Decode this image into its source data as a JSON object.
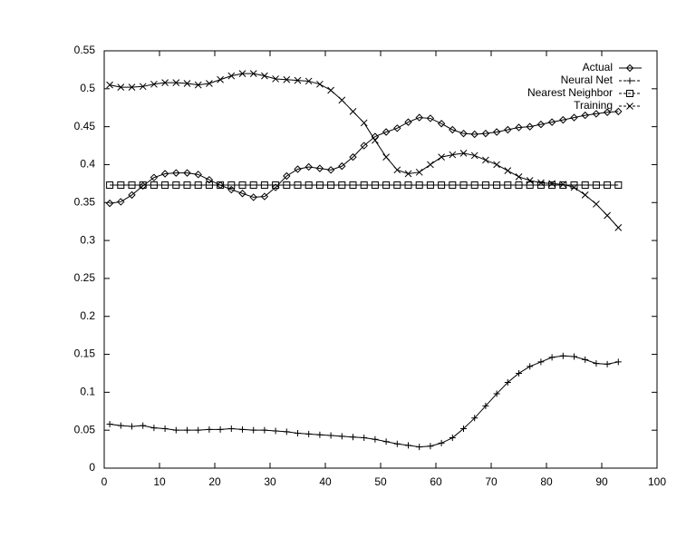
{
  "chart_data": {
    "type": "line",
    "x": [
      1,
      3,
      5,
      7,
      9,
      11,
      13,
      15,
      17,
      19,
      21,
      23,
      25,
      27,
      29,
      31,
      33,
      35,
      37,
      39,
      41,
      43,
      45,
      47,
      49,
      51,
      53,
      55,
      57,
      59,
      61,
      63,
      65,
      67,
      69,
      71,
      73,
      75,
      77,
      79,
      81,
      83,
      85,
      87,
      89,
      91,
      93
    ],
    "series": [
      {
        "name": "Actual",
        "color": "#000000",
        "marker": "diamond",
        "values": [
          0.349,
          0.351,
          0.36,
          0.372,
          0.383,
          0.388,
          0.389,
          0.389,
          0.387,
          0.38,
          0.373,
          0.367,
          0.362,
          0.357,
          0.358,
          0.37,
          0.385,
          0.394,
          0.397,
          0.395,
          0.393,
          0.398,
          0.41,
          0.425,
          0.437,
          0.443,
          0.448,
          0.456,
          0.462,
          0.461,
          0.454,
          0.446,
          0.441,
          0.44,
          0.441,
          0.443,
          0.446,
          0.449,
          0.45,
          0.453,
          0.456,
          0.459,
          0.462,
          0.465,
          0.467,
          0.469,
          0.47
        ]
      },
      {
        "name": "Neural Net",
        "color": "#000000",
        "marker": "plus",
        "values": [
          0.058,
          0.056,
          0.055,
          0.056,
          0.053,
          0.052,
          0.05,
          0.05,
          0.05,
          0.051,
          0.051,
          0.052,
          0.051,
          0.05,
          0.05,
          0.049,
          0.048,
          0.046,
          0.045,
          0.044,
          0.043,
          0.042,
          0.041,
          0.04,
          0.038,
          0.035,
          0.032,
          0.03,
          0.028,
          0.029,
          0.033,
          0.04,
          0.052,
          0.066,
          0.082,
          0.098,
          0.113,
          0.125,
          0.134,
          0.14,
          0.146,
          0.148,
          0.147,
          0.143,
          0.138,
          0.137,
          0.14
        ]
      },
      {
        "name": "Nearest Neighbor",
        "color": "#000000",
        "marker": "square",
        "values": [
          0.373,
          0.373,
          0.373,
          0.373,
          0.373,
          0.373,
          0.373,
          0.373,
          0.373,
          0.373,
          0.373,
          0.373,
          0.373,
          0.373,
          0.373,
          0.373,
          0.373,
          0.373,
          0.373,
          0.373,
          0.373,
          0.373,
          0.373,
          0.373,
          0.373,
          0.373,
          0.373,
          0.373,
          0.373,
          0.373,
          0.373,
          0.373,
          0.373,
          0.373,
          0.373,
          0.373,
          0.373,
          0.373,
          0.373,
          0.373,
          0.373,
          0.373,
          0.373,
          0.373,
          0.373,
          0.373,
          0.373
        ]
      },
      {
        "name": "Training",
        "color": "#000000",
        "marker": "cross",
        "values": [
          0.505,
          0.502,
          0.502,
          0.503,
          0.506,
          0.508,
          0.508,
          0.507,
          0.505,
          0.507,
          0.512,
          0.517,
          0.52,
          0.52,
          0.517,
          0.513,
          0.512,
          0.511,
          0.51,
          0.506,
          0.498,
          0.485,
          0.47,
          0.455,
          0.432,
          0.41,
          0.393,
          0.388,
          0.39,
          0.4,
          0.41,
          0.413,
          0.415,
          0.412,
          0.406,
          0.4,
          0.392,
          0.384,
          0.379,
          0.376,
          0.375,
          0.374,
          0.37,
          0.36,
          0.348,
          0.333,
          0.317
        ]
      }
    ],
    "xlim": [
      0,
      100
    ],
    "xticks": [
      0,
      10,
      20,
      30,
      40,
      50,
      60,
      70,
      80,
      90,
      100
    ],
    "ylim": [
      0,
      0.55
    ],
    "yticks": [
      0,
      0.05,
      0.1,
      0.15,
      0.2,
      0.25,
      0.3,
      0.35,
      0.4,
      0.45,
      0.5,
      0.55
    ],
    "legend": "top-right"
  }
}
